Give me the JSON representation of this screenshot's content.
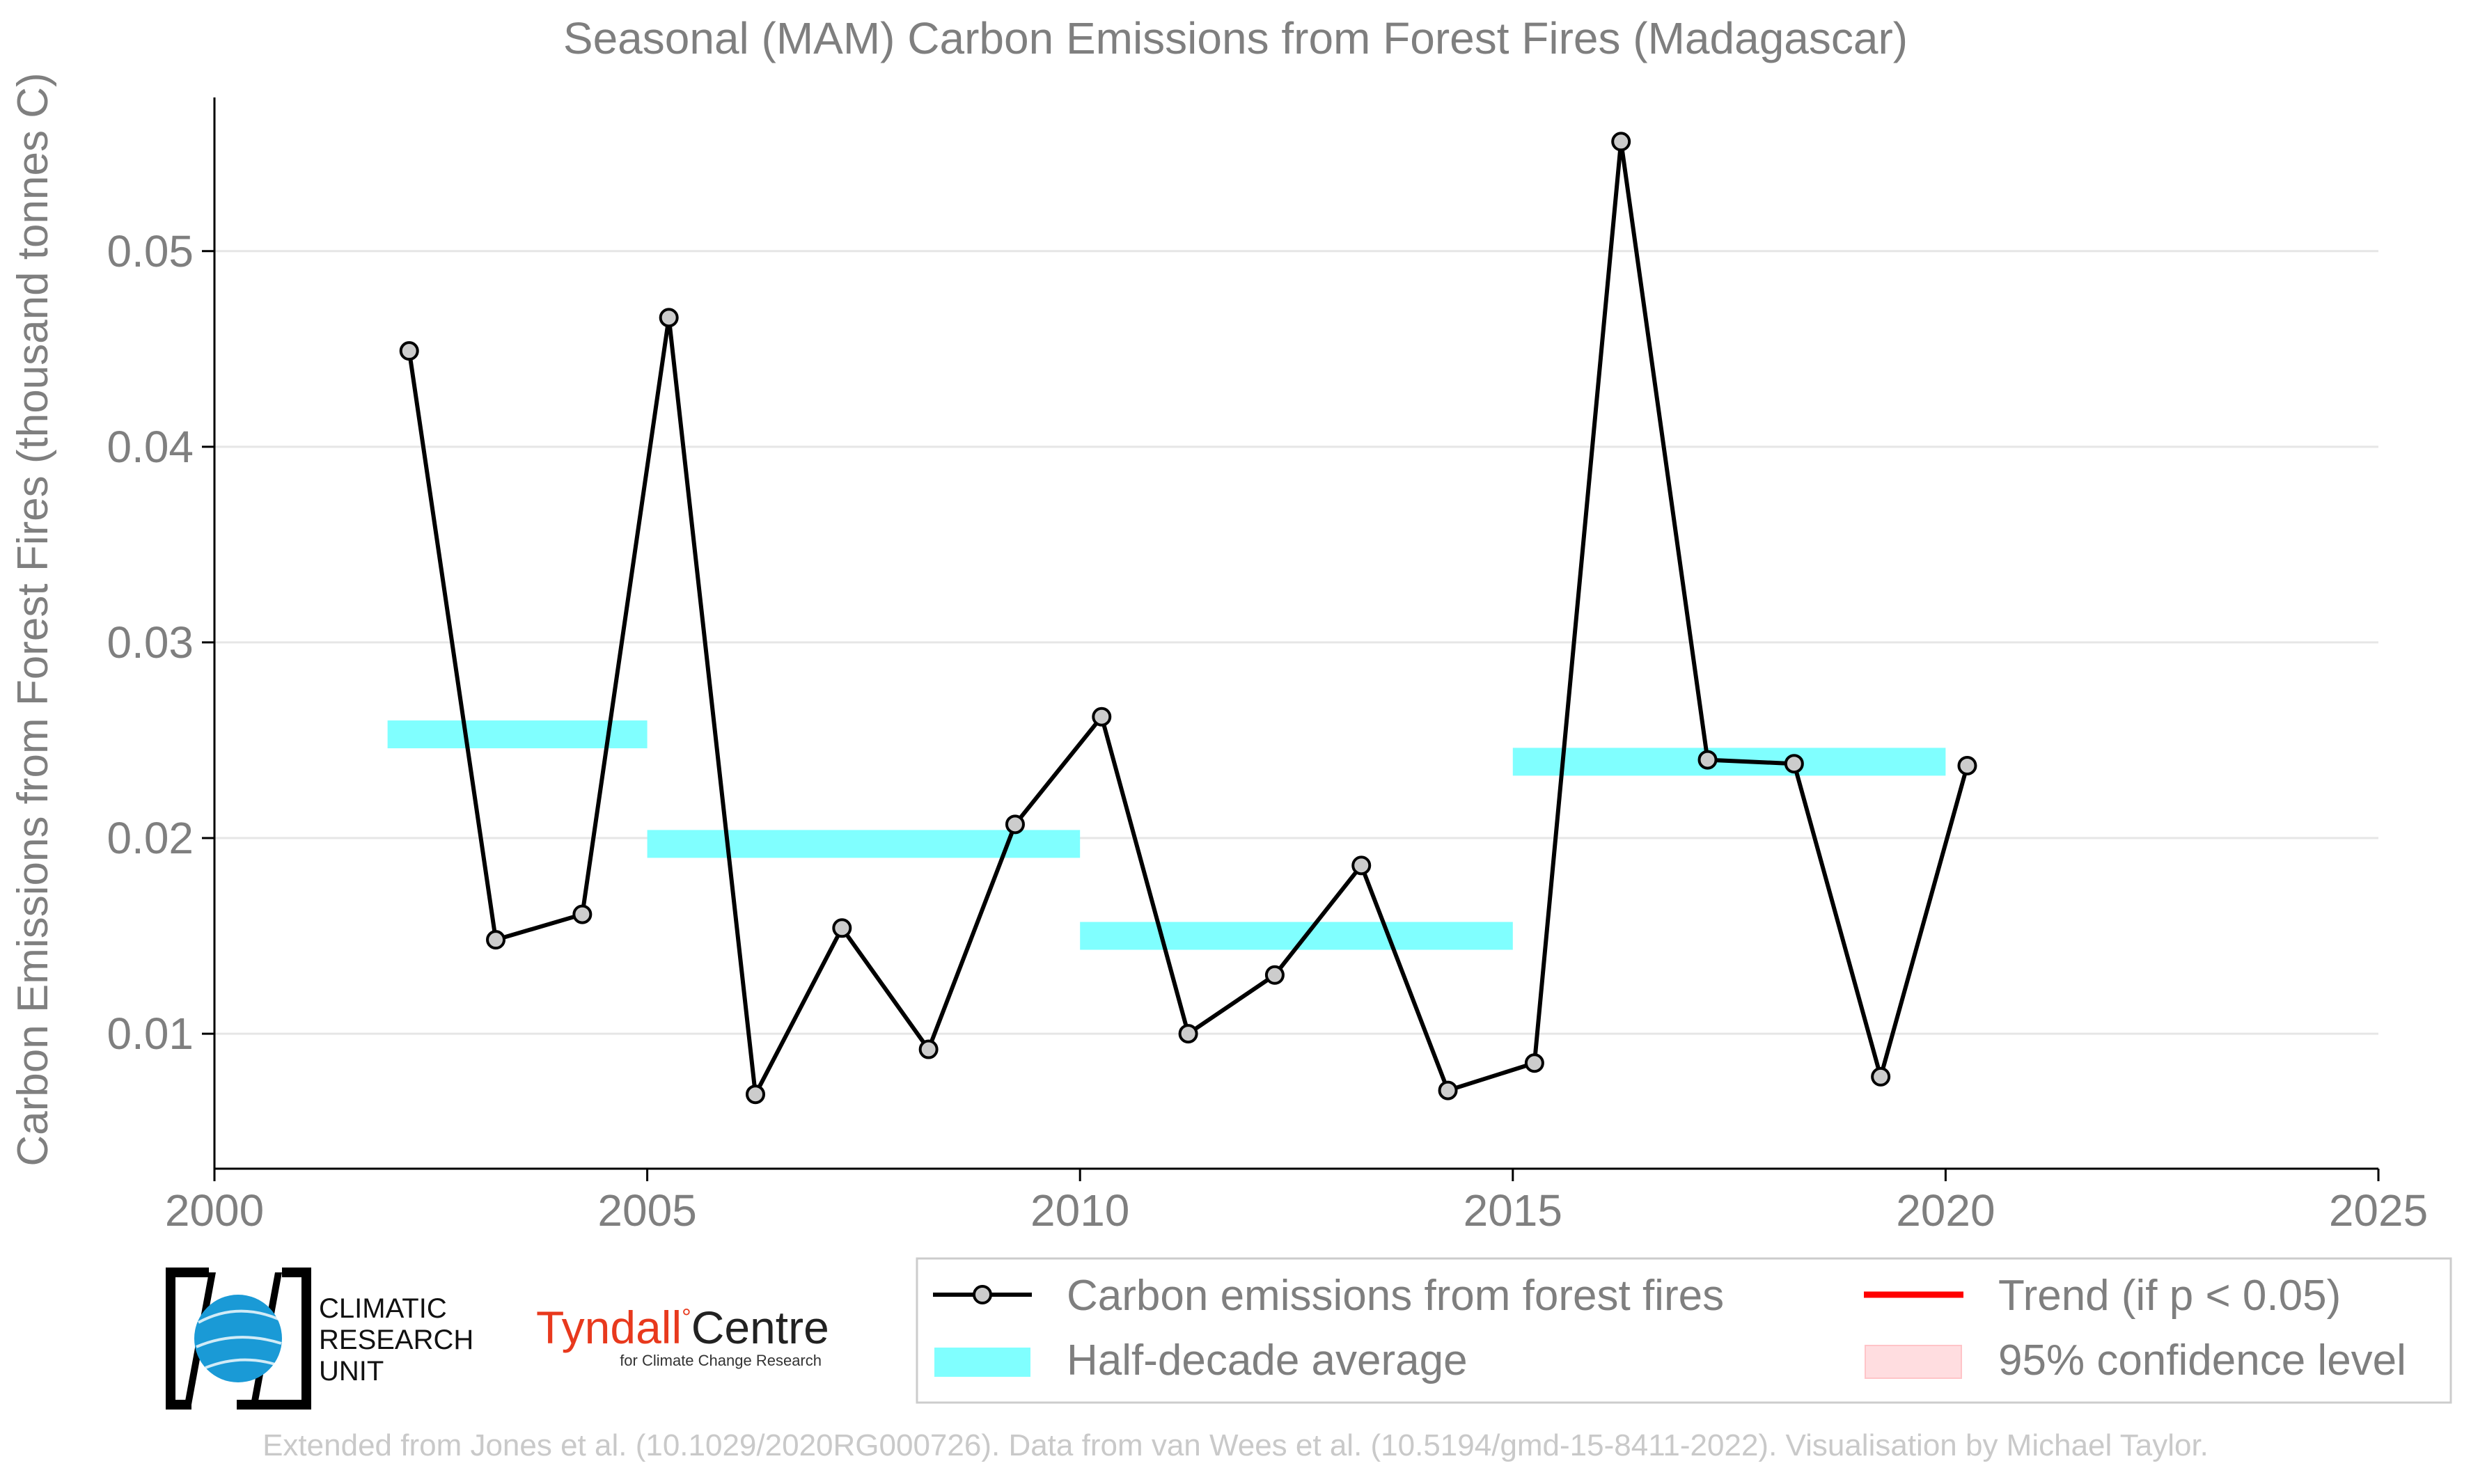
{
  "title": "Seasonal (MAM) Carbon Emissions from Forest Fires (Madagascar)",
  "credit": "Extended from Jones et al. (10.1029/2020RG000726). Data from van Wees et al. (10.5194/gmd-15-8411-2022). Visualisation by Michael Taylor.",
  "logos": {
    "cru": [
      "CLIMATIC",
      "RESEARCH",
      "UNIT"
    ],
    "tyndall_main": "Tyndall",
    "tyndall_degree": "°",
    "tyndall_centre": "Centre",
    "tyndall_sub": "for Climate Change Research"
  },
  "colors": {
    "series": "#000000",
    "marker_fill": "#cccccc",
    "half_decade": "#80ffff",
    "trend": "#ff0000",
    "confidence": "#ffdde0",
    "grid": "#e6e6e6",
    "text": "#7f7f7f"
  },
  "chart_data": {
    "type": "line",
    "title": "Seasonal (MAM) Carbon Emissions from Forest Fires (Madagascar)",
    "xlabel": "",
    "ylabel": "Carbon Emissions from Forest Fires (thousand tonnes C)",
    "xlim": [
      2000,
      2025
    ],
    "ylim": [
      0.0031,
      0.0575
    ],
    "xticks": [
      2000,
      2005,
      2010,
      2015,
      2020,
      2025
    ],
    "xtick_labels": [
      "2000",
      "2005",
      "2010",
      "2015",
      "2020",
      "2025"
    ],
    "yticks": [
      0.01,
      0.02,
      0.03,
      0.04,
      0.05
    ],
    "ytick_labels": [
      "0.01",
      "0.02",
      "0.03",
      "0.04",
      "0.05"
    ],
    "grid": "horizontal",
    "legend_position": "bottom-right",
    "series": [
      {
        "name": "Carbon emissions from forest fires",
        "x": [
          2002.25,
          2003.25,
          2004.25,
          2005.25,
          2006.25,
          2007.25,
          2008.25,
          2009.25,
          2010.25,
          2011.25,
          2012.25,
          2013.25,
          2014.25,
          2015.25,
          2016.25,
          2017.25,
          2018.25,
          2019.25,
          2020.25
        ],
        "y": [
          0.0449,
          0.0148,
          0.0161,
          0.0466,
          0.0069,
          0.0154,
          0.0092,
          0.0207,
          0.0262,
          0.01,
          0.013,
          0.0186,
          0.0071,
          0.0085,
          0.0556,
          0.024,
          0.0238,
          0.0078,
          0.0237
        ]
      }
    ],
    "half_decade_average": {
      "name": "Half-decade average",
      "segments": [
        {
          "x0": 2002,
          "x1": 2005,
          "y": 0.0253
        },
        {
          "x0": 2005,
          "x1": 2010,
          "y": 0.0197
        },
        {
          "x0": 2010,
          "x1": 2015,
          "y": 0.015
        },
        {
          "x0": 2015,
          "x1": 2020,
          "y": 0.0239
        }
      ]
    },
    "legend": [
      {
        "label": "Carbon emissions from forest fires",
        "kind": "line-marker"
      },
      {
        "label": "Half-decade average",
        "kind": "band"
      },
      {
        "label": "Trend (if p < 0.05)",
        "kind": "line-red"
      },
      {
        "label": "95% confidence level",
        "kind": "fill-pink"
      }
    ]
  }
}
